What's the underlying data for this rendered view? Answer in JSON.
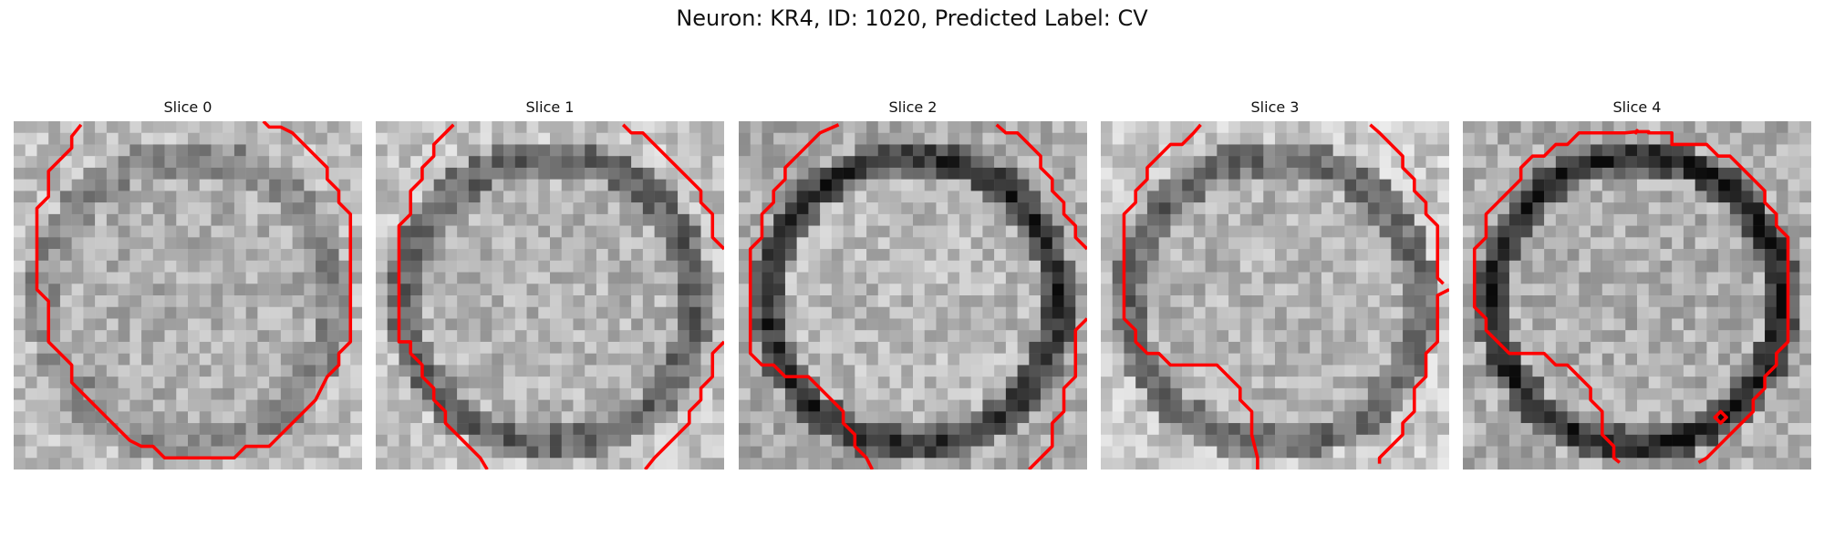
{
  "figure": {
    "title": "Neuron: KR4, ID: 1020, Predicted Label: CV"
  },
  "panels": [
    {
      "title": "Slice 0"
    },
    {
      "title": "Slice 1"
    },
    {
      "title": "Slice 2"
    },
    {
      "title": "Slice 3"
    },
    {
      "title": "Slice 4"
    }
  ],
  "colors": {
    "contour": "#ff0000",
    "background": "#ffffff",
    "colormap": "grayscale"
  }
}
